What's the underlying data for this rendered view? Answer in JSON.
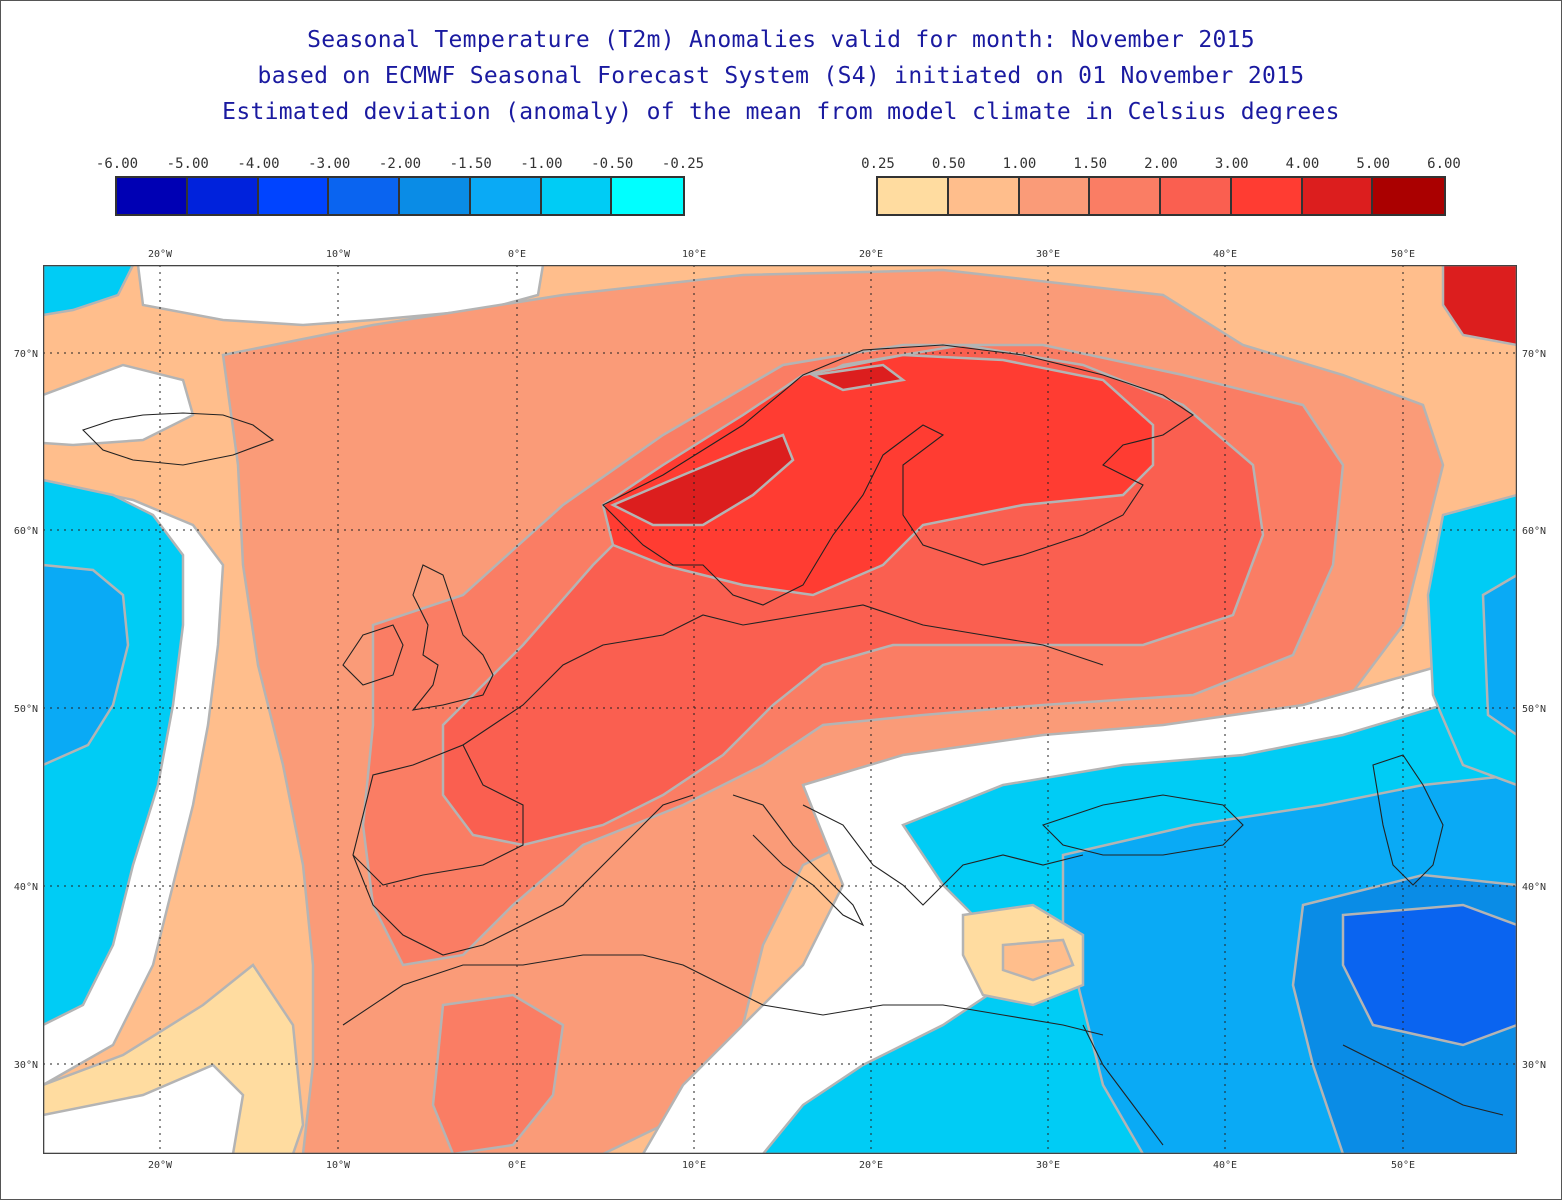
{
  "title": {
    "line1": "Seasonal Temperature (T2m) Anomalies valid for month: November 2015",
    "line2": "based on ECMWF Seasonal Forecast System (S4) initiated on 01 November 2015",
    "line3": "Estimated deviation (anomaly) of the mean from model climate in Celsius degrees"
  },
  "legend_negative": {
    "labels": [
      "-6.00",
      "-5.00",
      "-4.00",
      "-3.00",
      "-2.00",
      "-1.50",
      "-1.00",
      "-0.50",
      "-0.25"
    ],
    "colors": [
      "#0000b4",
      "#0022dc",
      "#0044ff",
      "#0a64f0",
      "#0a8ce6",
      "#0aaaf5",
      "#00ccf5",
      "#00ffff"
    ]
  },
  "legend_positive": {
    "labels": [
      "0.25",
      "0.50",
      "1.00",
      "1.50",
      "2.00",
      "3.00",
      "4.00",
      "5.00",
      "6.00"
    ],
    "colors": [
      "#ffdca0",
      "#ffbe8c",
      "#fa9b78",
      "#fa7d64",
      "#fa5f50",
      "#ff3c32",
      "#dc1e1e",
      "#aa0000"
    ]
  },
  "map": {
    "lon_labels_top": [
      "20°W",
      "10°W",
      "0°E",
      "10°E",
      "20°E",
      "30°E",
      "40°E",
      "50°E"
    ],
    "lon_labels_bottom": [
      "20°W",
      "10°W",
      "0°E",
      "10°E",
      "20°E",
      "30°E",
      "40°E",
      "50°E"
    ],
    "lat_labels_left": [
      "70°N",
      "60°N",
      "50°N",
      "40°N",
      "30°N"
    ],
    "lat_labels_right": [
      "70°N",
      "60°N",
      "50°N",
      "40°N",
      "30°N"
    ]
  }
}
